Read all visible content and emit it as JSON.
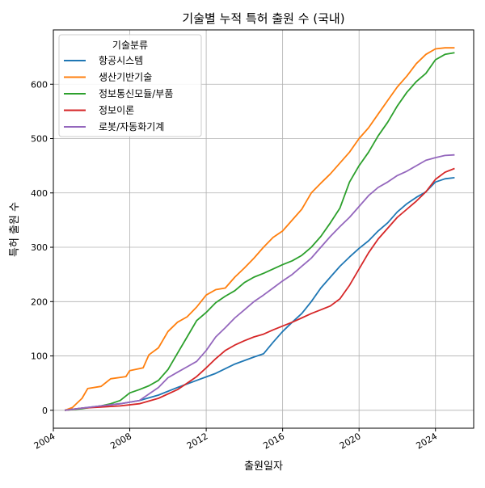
{
  "chart_data": {
    "type": "line",
    "title": "기술별 누적 특허 출원 수 (국내)",
    "xlabel": "출원일자",
    "ylabel": "특허 출원 수",
    "legend_title": "기술분류",
    "legend_position": "top-left",
    "grid": true,
    "xlim": [
      2004.0,
      2026.0
    ],
    "ylim": [
      -33,
      700
    ],
    "x_ticks": [
      2004,
      2008,
      2012,
      2016,
      2020,
      2024
    ],
    "y_ticks": [
      0,
      100,
      200,
      300,
      400,
      500,
      600
    ],
    "series": [
      {
        "name": "항공시스템",
        "color": "#1f77b4",
        "points": [
          [
            2004.6,
            0
          ],
          [
            2005.5,
            4
          ],
          [
            2006.5,
            8
          ],
          [
            2007.5,
            12
          ],
          [
            2008.5,
            18
          ],
          [
            2009.5,
            28
          ],
          [
            2010.5,
            42
          ],
          [
            2011.5,
            55
          ],
          [
            2012.5,
            68
          ],
          [
            2013.5,
            85
          ],
          [
            2014.5,
            98
          ],
          [
            2015.0,
            104
          ],
          [
            2015.5,
            125
          ],
          [
            2016.0,
            145
          ],
          [
            2016.5,
            162
          ],
          [
            2017.0,
            178
          ],
          [
            2017.5,
            200
          ],
          [
            2018.0,
            225
          ],
          [
            2018.5,
            245
          ],
          [
            2019.0,
            265
          ],
          [
            2019.5,
            282
          ],
          [
            2020.0,
            298
          ],
          [
            2020.5,
            312
          ],
          [
            2021.0,
            330
          ],
          [
            2021.5,
            345
          ],
          [
            2022.0,
            365
          ],
          [
            2022.5,
            380
          ],
          [
            2023.0,
            392
          ],
          [
            2023.5,
            402
          ],
          [
            2024.0,
            420
          ],
          [
            2024.5,
            426
          ],
          [
            2025.0,
            428
          ]
        ]
      },
      {
        "name": "생산기반기술",
        "color": "#ff7f0e",
        "points": [
          [
            2004.6,
            0
          ],
          [
            2005.0,
            5
          ],
          [
            2005.5,
            22
          ],
          [
            2005.8,
            40
          ],
          [
            2006.5,
            44
          ],
          [
            2007.0,
            58
          ],
          [
            2007.8,
            62
          ],
          [
            2008.0,
            73
          ],
          [
            2008.7,
            78
          ],
          [
            2009.0,
            102
          ],
          [
            2009.5,
            115
          ],
          [
            2010.0,
            145
          ],
          [
            2010.5,
            162
          ],
          [
            2011.0,
            172
          ],
          [
            2011.5,
            190
          ],
          [
            2012.0,
            212
          ],
          [
            2012.5,
            222
          ],
          [
            2013.0,
            225
          ],
          [
            2013.5,
            245
          ],
          [
            2014.0,
            262
          ],
          [
            2014.5,
            280
          ],
          [
            2015.0,
            300
          ],
          [
            2015.5,
            318
          ],
          [
            2016.0,
            330
          ],
          [
            2016.5,
            350
          ],
          [
            2017.0,
            370
          ],
          [
            2017.5,
            400
          ],
          [
            2018.0,
            418
          ],
          [
            2018.5,
            435
          ],
          [
            2019.0,
            455
          ],
          [
            2019.5,
            475
          ],
          [
            2020.0,
            500
          ],
          [
            2020.5,
            520
          ],
          [
            2021.0,
            545
          ],
          [
            2021.5,
            570
          ],
          [
            2022.0,
            595
          ],
          [
            2022.5,
            615
          ],
          [
            2023.0,
            638
          ],
          [
            2023.5,
            655
          ],
          [
            2024.0,
            665
          ],
          [
            2024.5,
            667
          ],
          [
            2025.0,
            667
          ]
        ]
      },
      {
        "name": "정보통신모듈/부품",
        "color": "#2ca02c",
        "points": [
          [
            2004.6,
            0
          ],
          [
            2005.5,
            3
          ],
          [
            2006.5,
            8
          ],
          [
            2007.0,
            12
          ],
          [
            2007.5,
            18
          ],
          [
            2008.0,
            32
          ],
          [
            2008.5,
            38
          ],
          [
            2009.0,
            45
          ],
          [
            2009.5,
            55
          ],
          [
            2010.0,
            75
          ],
          [
            2010.5,
            105
          ],
          [
            2011.0,
            135
          ],
          [
            2011.5,
            165
          ],
          [
            2012.0,
            180
          ],
          [
            2012.5,
            198
          ],
          [
            2013.0,
            210
          ],
          [
            2013.5,
            220
          ],
          [
            2014.0,
            235
          ],
          [
            2014.5,
            245
          ],
          [
            2015.0,
            252
          ],
          [
            2015.5,
            260
          ],
          [
            2016.0,
            268
          ],
          [
            2016.5,
            275
          ],
          [
            2017.0,
            285
          ],
          [
            2017.5,
            300
          ],
          [
            2018.0,
            320
          ],
          [
            2018.5,
            345
          ],
          [
            2019.0,
            372
          ],
          [
            2019.5,
            420
          ],
          [
            2020.0,
            450
          ],
          [
            2020.5,
            475
          ],
          [
            2021.0,
            505
          ],
          [
            2021.5,
            530
          ],
          [
            2022.0,
            560
          ],
          [
            2022.5,
            585
          ],
          [
            2023.0,
            605
          ],
          [
            2023.5,
            620
          ],
          [
            2024.0,
            645
          ],
          [
            2024.5,
            655
          ],
          [
            2025.0,
            658
          ]
        ]
      },
      {
        "name": "정보이론",
        "color": "#d62728",
        "points": [
          [
            2004.6,
            0
          ],
          [
            2005.5,
            4
          ],
          [
            2006.5,
            6
          ],
          [
            2007.5,
            8
          ],
          [
            2008.5,
            12
          ],
          [
            2009.5,
            22
          ],
          [
            2010.5,
            38
          ],
          [
            2011.0,
            50
          ],
          [
            2011.5,
            62
          ],
          [
            2012.0,
            78
          ],
          [
            2012.5,
            95
          ],
          [
            2013.0,
            110
          ],
          [
            2013.5,
            120
          ],
          [
            2014.0,
            128
          ],
          [
            2014.5,
            135
          ],
          [
            2015.0,
            140
          ],
          [
            2015.5,
            148
          ],
          [
            2016.0,
            155
          ],
          [
            2016.5,
            162
          ],
          [
            2017.0,
            170
          ],
          [
            2017.5,
            178
          ],
          [
            2018.0,
            185
          ],
          [
            2018.5,
            192
          ],
          [
            2019.0,
            205
          ],
          [
            2019.5,
            230
          ],
          [
            2020.0,
            260
          ],
          [
            2020.5,
            290
          ],
          [
            2021.0,
            315
          ],
          [
            2021.5,
            335
          ],
          [
            2022.0,
            355
          ],
          [
            2022.5,
            370
          ],
          [
            2023.0,
            385
          ],
          [
            2023.5,
            402
          ],
          [
            2024.0,
            425
          ],
          [
            2024.5,
            438
          ],
          [
            2025.0,
            445
          ]
        ]
      },
      {
        "name": "로봇/자동화기계",
        "color": "#9467bd",
        "points": [
          [
            2004.6,
            0
          ],
          [
            2005.5,
            4
          ],
          [
            2006.5,
            8
          ],
          [
            2007.5,
            12
          ],
          [
            2008.5,
            18
          ],
          [
            2009.5,
            42
          ],
          [
            2010.0,
            60
          ],
          [
            2010.5,
            70
          ],
          [
            2011.0,
            80
          ],
          [
            2011.5,
            90
          ],
          [
            2012.0,
            110
          ],
          [
            2012.5,
            135
          ],
          [
            2013.0,
            152
          ],
          [
            2013.5,
            170
          ],
          [
            2014.0,
            185
          ],
          [
            2014.5,
            200
          ],
          [
            2015.0,
            212
          ],
          [
            2015.5,
            225
          ],
          [
            2016.0,
            238
          ],
          [
            2016.5,
            250
          ],
          [
            2017.0,
            265
          ],
          [
            2017.5,
            280
          ],
          [
            2018.0,
            300
          ],
          [
            2018.5,
            320
          ],
          [
            2019.0,
            338
          ],
          [
            2019.5,
            355
          ],
          [
            2020.0,
            375
          ],
          [
            2020.5,
            395
          ],
          [
            2021.0,
            410
          ],
          [
            2021.5,
            420
          ],
          [
            2022.0,
            432
          ],
          [
            2022.5,
            440
          ],
          [
            2023.0,
            450
          ],
          [
            2023.5,
            460
          ],
          [
            2024.0,
            465
          ],
          [
            2024.5,
            469
          ],
          [
            2025.0,
            470
          ]
        ]
      }
    ]
  }
}
